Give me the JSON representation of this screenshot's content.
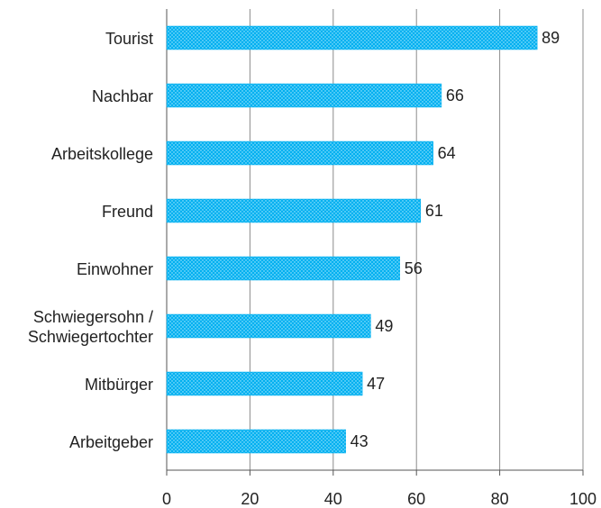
{
  "chart_data": {
    "type": "barh",
    "categories": [
      "Tourist",
      "Nachbar",
      "Arbeitskollege",
      "Freund",
      "Einwohner",
      "Schwiegersohn / Schwiegertochter",
      "Mitbürger",
      "Arbeitgeber"
    ],
    "values": [
      89,
      66,
      64,
      61,
      56,
      49,
      47,
      43
    ],
    "color": "#00b0f0",
    "xlim": [
      0,
      100
    ],
    "xticks": [
      0,
      20,
      40,
      60,
      80,
      100
    ],
    "grid": true
  }
}
